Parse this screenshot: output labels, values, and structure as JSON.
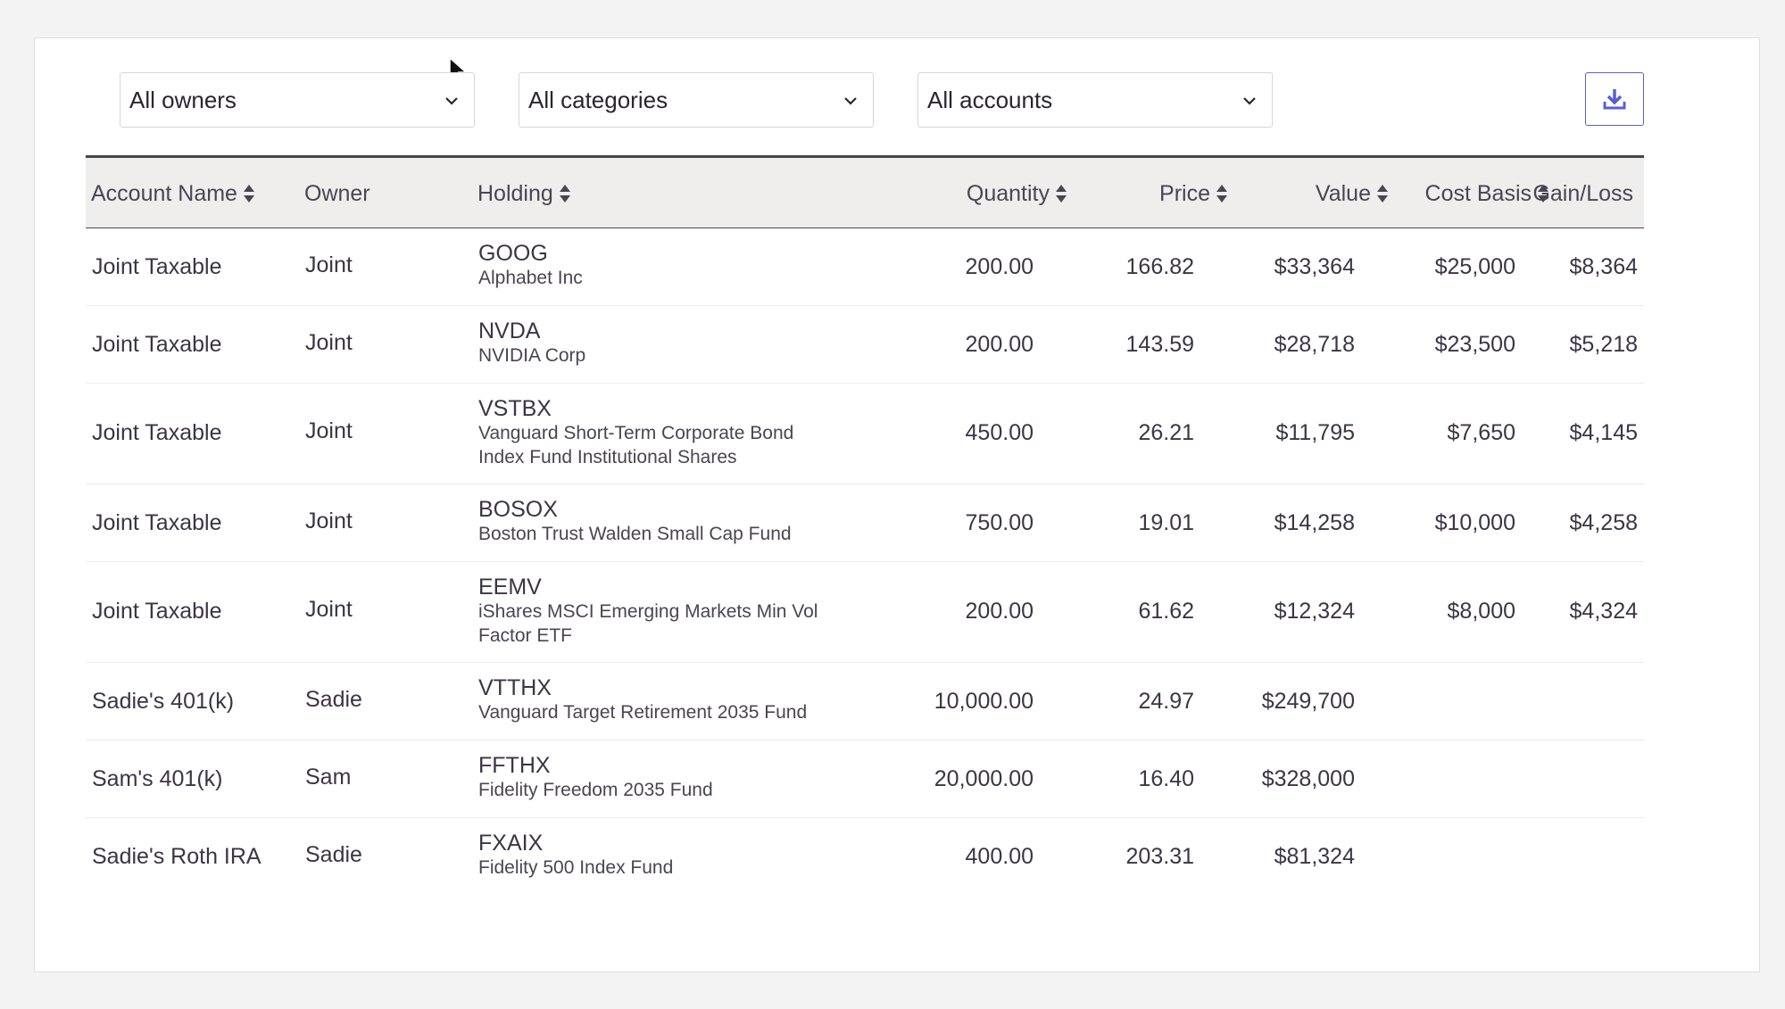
{
  "filters": {
    "owners": "All owners",
    "categories": "All categories",
    "accounts": "All accounts"
  },
  "icons": {
    "download": "download-icon",
    "chevron": "chevron-down-icon",
    "sort": "sort-icon"
  },
  "colors": {
    "accent": "#5a5fcf",
    "header_bg": "#efeeec",
    "text": "#3d3445"
  },
  "table": {
    "columns": {
      "account_name": "Account Name",
      "owner": "Owner",
      "holding": "Holding",
      "quantity": "Quantity",
      "price": "Price",
      "value": "Value",
      "cost_basis": "Cost Basis",
      "gain_loss": "Gain/Loss"
    },
    "rows": [
      {
        "account": "Joint Taxable",
        "owner": "Joint",
        "symbol": "GOOG",
        "name": "Alphabet Inc",
        "quantity": "200.00",
        "price": "166.82",
        "value": "$33,364",
        "cost_basis": "$25,000",
        "gain_loss": "$8,364"
      },
      {
        "account": "Joint Taxable",
        "owner": "Joint",
        "symbol": "NVDA",
        "name": "NVIDIA Corp",
        "quantity": "200.00",
        "price": "143.59",
        "value": "$28,718",
        "cost_basis": "$23,500",
        "gain_loss": "$5,218"
      },
      {
        "account": "Joint Taxable",
        "owner": "Joint",
        "symbol": "VSTBX",
        "name": "Vanguard Short-Term Corporate Bond Index Fund Institutional Shares",
        "quantity": "450.00",
        "price": "26.21",
        "value": "$11,795",
        "cost_basis": "$7,650",
        "gain_loss": "$4,145"
      },
      {
        "account": "Joint Taxable",
        "owner": "Joint",
        "symbol": "BOSOX",
        "name": "Boston Trust Walden Small Cap Fund",
        "quantity": "750.00",
        "price": "19.01",
        "value": "$14,258",
        "cost_basis": "$10,000",
        "gain_loss": "$4,258"
      },
      {
        "account": "Joint Taxable",
        "owner": "Joint",
        "symbol": "EEMV",
        "name": "iShares MSCI Emerging Markets Min Vol Factor ETF",
        "quantity": "200.00",
        "price": "61.62",
        "value": "$12,324",
        "cost_basis": "$8,000",
        "gain_loss": "$4,324"
      },
      {
        "account": "Sadie's 401(k)",
        "owner": "Sadie",
        "symbol": "VTTHX",
        "name": "Vanguard Target Retirement 2035 Fund",
        "quantity": "10,000.00",
        "price": "24.97",
        "value": "$249,700",
        "cost_basis": "",
        "gain_loss": ""
      },
      {
        "account": "Sam's 401(k)",
        "owner": "Sam",
        "symbol": "FFTHX",
        "name": "Fidelity Freedom 2035 Fund",
        "quantity": "20,000.00",
        "price": "16.40",
        "value": "$328,000",
        "cost_basis": "",
        "gain_loss": ""
      },
      {
        "account": "Sadie's Roth IRA",
        "owner": "Sadie",
        "symbol": "FXAIX",
        "name": "Fidelity 500 Index Fund",
        "quantity": "400.00",
        "price": "203.31",
        "value": "$81,324",
        "cost_basis": "",
        "gain_loss": ""
      }
    ]
  }
}
